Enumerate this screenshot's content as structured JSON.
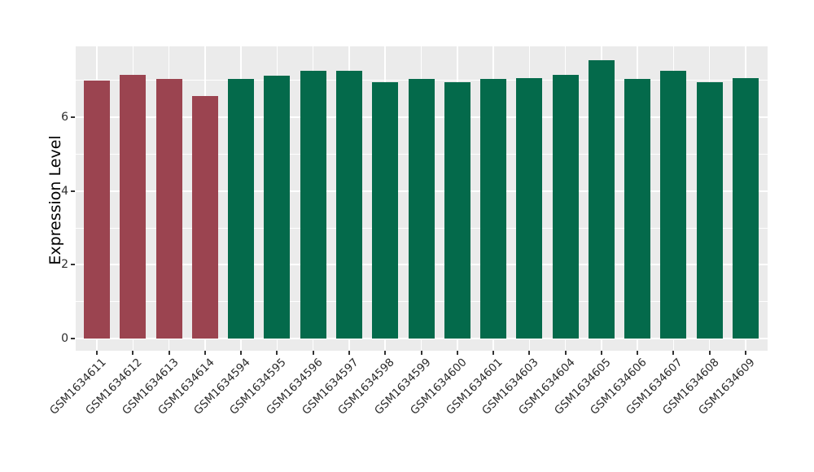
{
  "chart_data": {
    "type": "bar",
    "title": "",
    "xlabel": "",
    "ylabel": "Expression Level",
    "ylim": [
      0,
      7.92
    ],
    "yticks": [
      0,
      2,
      4,
      6
    ],
    "yticks_minor": [
      1,
      3,
      5,
      7
    ],
    "grid": "major and minor horizontal white lines, vertical white line at each category",
    "legend": false,
    "panel_background": "#EBEBEB",
    "gridline_color": "#FFFFFF",
    "tick_color": "#333333",
    "text_color": "#2b2b2b",
    "group_colors": {
      "highlight": "#9B4450",
      "normal": "#046A4B"
    },
    "categories": [
      "GSM1634611",
      "GSM1634612",
      "GSM1634613",
      "GSM1634614",
      "GSM1634594",
      "GSM1634595",
      "GSM1634596",
      "GSM1634597",
      "GSM1634598",
      "GSM1634599",
      "GSM1634600",
      "GSM1634601",
      "GSM1634603",
      "GSM1634604",
      "GSM1634605",
      "GSM1634606",
      "GSM1634607",
      "GSM1634608",
      "GSM1634609"
    ],
    "values": [
      7.0,
      7.14,
      7.03,
      6.58,
      7.03,
      7.12,
      7.25,
      7.25,
      6.95,
      7.03,
      6.95,
      7.03,
      7.05,
      7.15,
      7.54,
      7.03,
      7.25,
      6.95,
      7.07
    ],
    "groups": [
      "highlight",
      "highlight",
      "highlight",
      "highlight",
      "normal",
      "normal",
      "normal",
      "normal",
      "normal",
      "normal",
      "normal",
      "normal",
      "normal",
      "normal",
      "normal",
      "normal",
      "normal",
      "normal",
      "normal"
    ]
  }
}
